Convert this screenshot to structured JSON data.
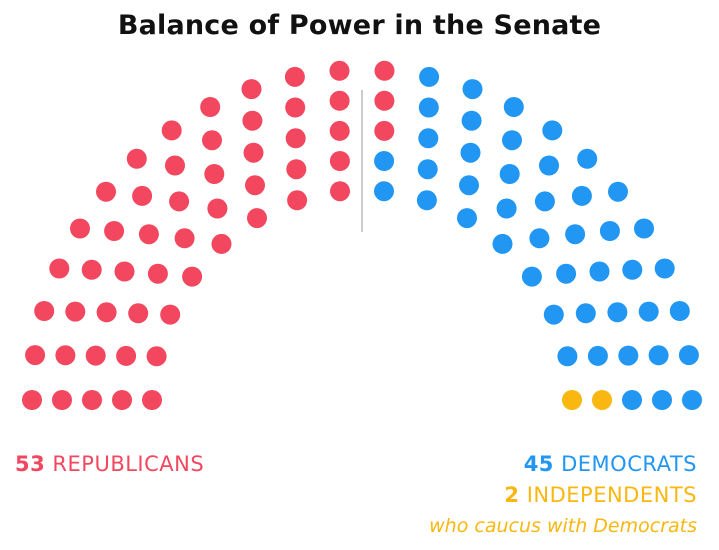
{
  "chart_data": {
    "type": "parliament",
    "title": "Balance of Power in the Senate",
    "total_seats": 100,
    "series": [
      {
        "name": "REPUBLICANS",
        "value": 53,
        "color": "#f2475f",
        "side": "left"
      },
      {
        "name": "DEMOCRATS",
        "value": 45,
        "color": "#2196f3",
        "side": "right"
      },
      {
        "name": "INDEPENDENTS",
        "value": 2,
        "color": "#f9b70f",
        "side": "right",
        "note": "who caucus with Democrats"
      }
    ]
  },
  "labels": {
    "rep_count": "53",
    "rep_text": "REPUBLICANS",
    "dem_count": "45",
    "dem_text": "DEMOCRATS",
    "ind_count": "2",
    "ind_text": "INDEPENDENTS",
    "ind_note": "who caucus with Democrats"
  },
  "colors": {
    "divider": "#cccccc",
    "rep": "#f2475f",
    "dem": "#2196f3",
    "ind": "#f9b70f"
  }
}
